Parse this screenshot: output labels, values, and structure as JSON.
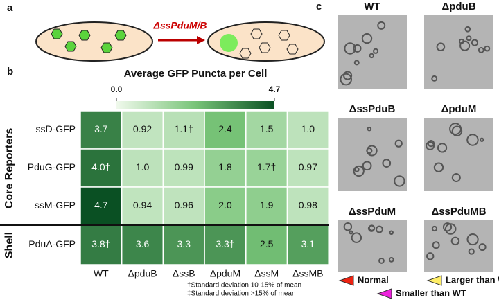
{
  "panel_labels": [
    "a",
    "b",
    "c"
  ],
  "panel_a": {
    "arrow_label": "ΔssPduM/B"
  },
  "chart_data": {
    "type": "heatmap",
    "title": "Average GFP Puncta per Cell",
    "rows": [
      "ssD-GFP",
      "PduG-GFP",
      "ssM-GFP",
      "PduA-GFP"
    ],
    "columns": [
      "WT",
      "ΔpduB",
      "ΔssB",
      "ΔpduM",
      "ΔssM",
      "ΔssMB"
    ],
    "values": [
      [
        3.7,
        0.92,
        1.1,
        2.4,
        1.5,
        1.0
      ],
      [
        4.0,
        1.0,
        0.99,
        1.8,
        1.7,
        0.97
      ],
      [
        4.7,
        0.94,
        0.96,
        2.0,
        1.9,
        0.98
      ],
      [
        3.8,
        3.6,
        3.3,
        3.3,
        2.5,
        3.1
      ]
    ],
    "value_labels": [
      [
        "3.7",
        "0.92",
        "1.1†",
        "2.4",
        "1.5",
        "1.0"
      ],
      [
        "4.0†",
        "1.0",
        "0.99",
        "1.8",
        "1.7†",
        "0.97"
      ],
      [
        "4.7",
        "0.94",
        "0.96",
        "2.0",
        "1.9",
        "0.98"
      ],
      [
        "3.8†",
        "3.6",
        "3.3",
        "3.3†",
        "2.5",
        "3.1"
      ]
    ],
    "clim": [
      0,
      4.7
    ],
    "cticks": [
      {
        "value": 0,
        "label": "0.0"
      },
      4.7
    ],
    "row_groups": [
      "Core Reporters",
      "Shell"
    ],
    "footnotes": [
      "†Standard deviation 10-15% of mean",
      "‡Standard deviation >15% of mean"
    ]
  },
  "panel_c": {
    "images": [
      "WT",
      "ΔpduB",
      "ΔssPduB",
      "ΔpduM",
      "ΔssPduM",
      "ΔssPduMB"
    ],
    "legend": [
      "Normal",
      "Larger than WT",
      "Smaller than WT"
    ]
  }
}
